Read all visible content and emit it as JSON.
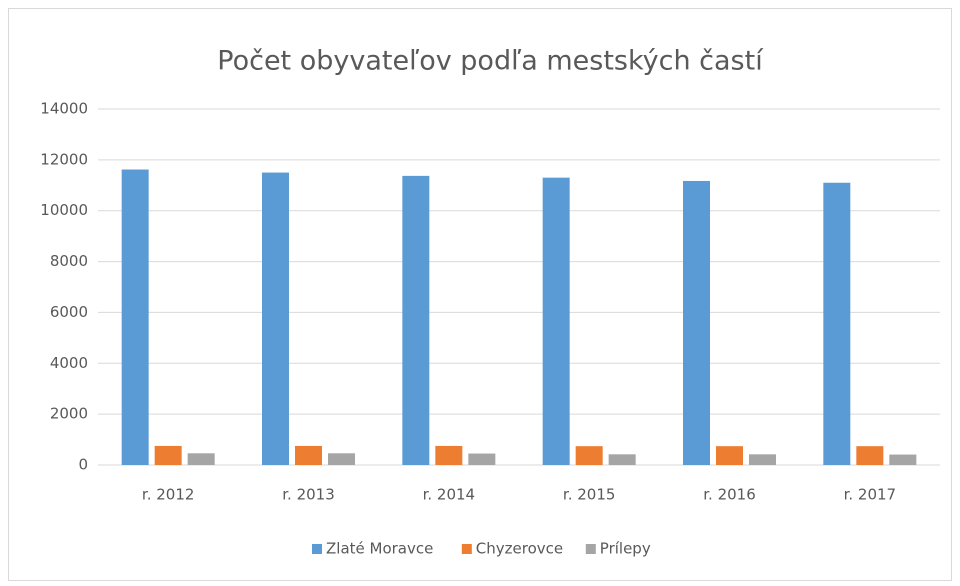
{
  "chart_data": {
    "type": "bar",
    "title": "Počet obyvateľov podľa mestských častí",
    "categories": [
      "r. 2012",
      "r. 2013",
      "r. 2014",
      "r. 2015",
      "r. 2016",
      "r. 2017"
    ],
    "series": [
      {
        "name": "Zlaté Moravce",
        "color": "#5b9bd5",
        "values": [
          11620,
          11500,
          11370,
          11300,
          11170,
          11100
        ]
      },
      {
        "name": "Chyzerovce",
        "color": "#ed7d31",
        "values": [
          750,
          750,
          750,
          740,
          740,
          740
        ]
      },
      {
        "name": "Prílepy",
        "color": "#a5a5a5",
        "values": [
          460,
          460,
          450,
          420,
          420,
          410
        ]
      }
    ],
    "ylim": [
      0,
      14000
    ],
    "yticks": [
      0,
      2000,
      4000,
      6000,
      8000,
      10000,
      12000,
      14000
    ],
    "grid": true,
    "legend": "bottom"
  }
}
